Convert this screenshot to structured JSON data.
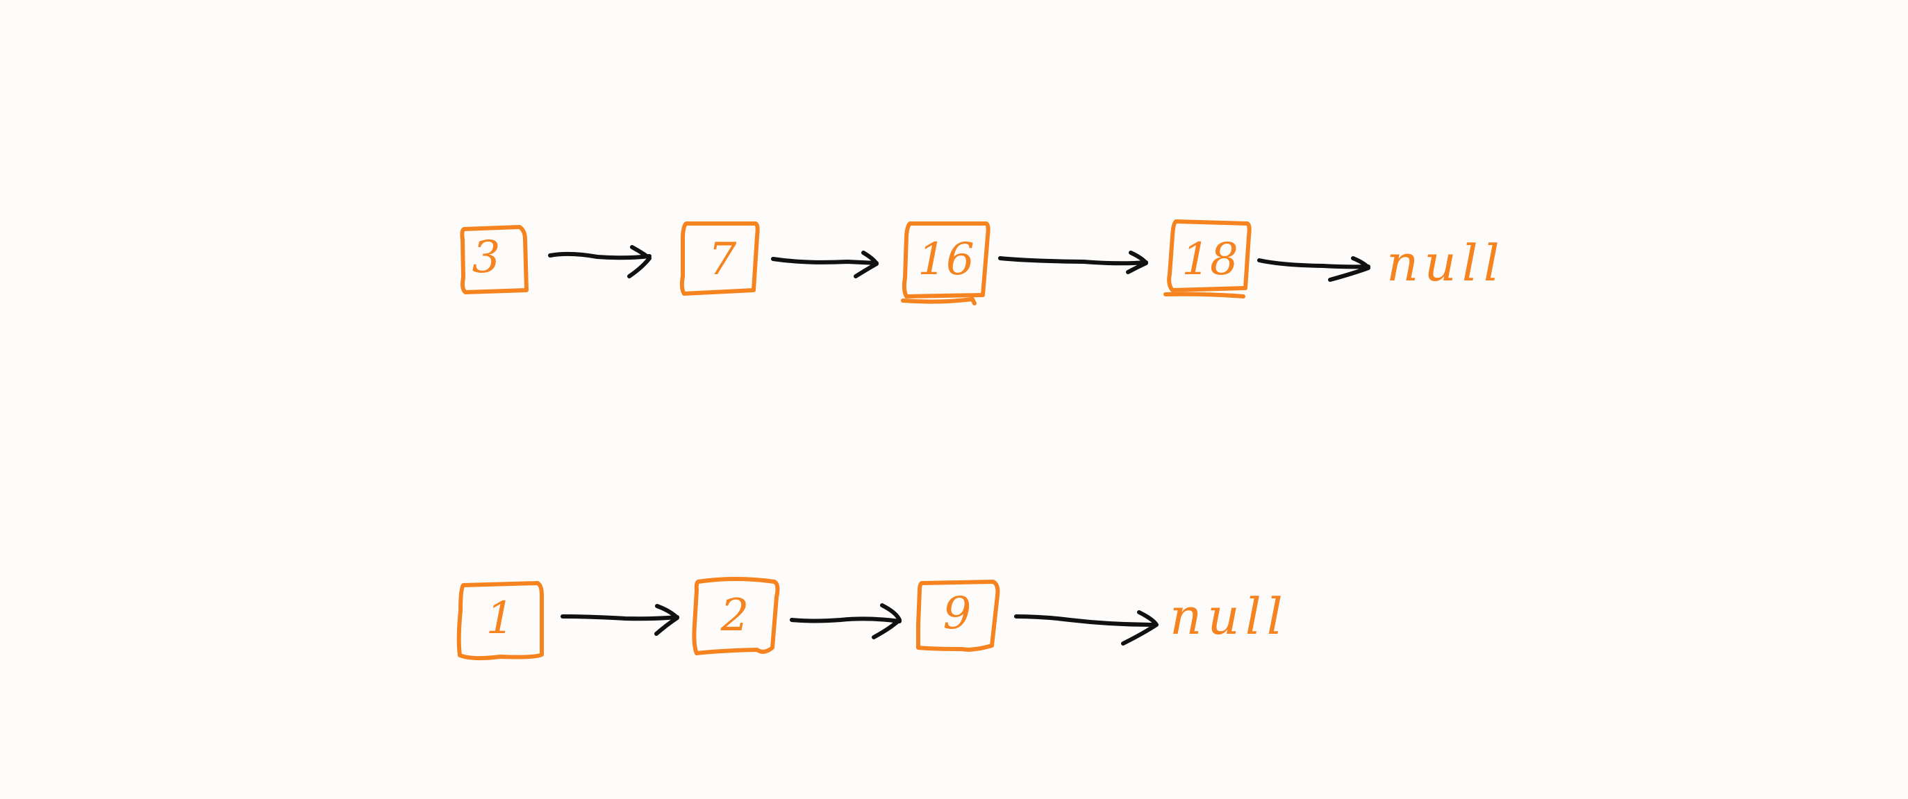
{
  "diagram": {
    "colors": {
      "background": "#fdfcfb",
      "node": "#f5831f",
      "arrow": "#111111"
    },
    "lists": [
      {
        "nodes": [
          "3",
          "7",
          "16",
          "18"
        ],
        "terminator": "null"
      },
      {
        "nodes": [
          "1",
          "2",
          "9"
        ],
        "terminator": "null"
      }
    ]
  }
}
